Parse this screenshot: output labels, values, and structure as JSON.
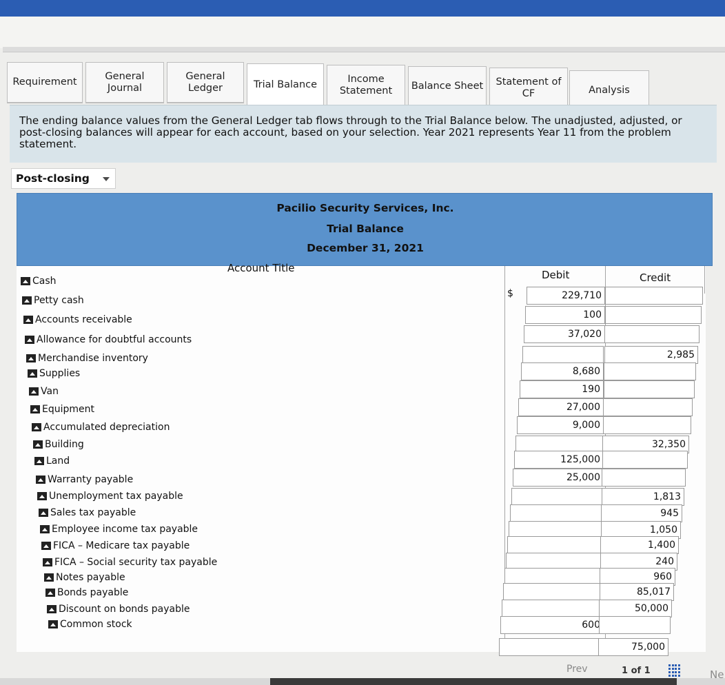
{
  "tabs": [
    {
      "label": "Requirement"
    },
    {
      "label": "General\nJournal"
    },
    {
      "label": "General\nLedger"
    },
    {
      "label": "Trial Balance"
    },
    {
      "label": "Income\nStatement"
    },
    {
      "label": "Balance Sheet"
    },
    {
      "label": "Statement of\nCF"
    },
    {
      "label": "Analysis"
    }
  ],
  "info_text": "The ending balance values from the General Ledger tab flows through to the Trial Balance below. The unadjusted, adjusted, or post-closing balances will appear for each account, based on your selection. Year 2021 represents Year 11 from the problem statement.",
  "balance_select": {
    "value": "Post-closing"
  },
  "header": {
    "company": "Pacilio Security Services, Inc.",
    "report": "Trial Balance",
    "date": "December 31, 2021"
  },
  "columns": {
    "account": "Account Title",
    "debit": "Debit",
    "credit": "Credit"
  },
  "currency_symbol": "$",
  "rows": [
    {
      "account": "Cash",
      "debit": "229,710",
      "credit": ""
    },
    {
      "account": "Petty cash",
      "debit": "100",
      "credit": ""
    },
    {
      "account": "Accounts receivable",
      "debit": "37,020",
      "credit": ""
    },
    {
      "account": "Allowance for doubtful accounts",
      "debit": "",
      "credit": "2,985"
    },
    {
      "account": "Merchandise inventory",
      "debit": "8,680",
      "credit": ""
    },
    {
      "account": "Supplies",
      "debit": "190",
      "credit": ""
    },
    {
      "account": "Van",
      "debit": "27,000",
      "credit": ""
    },
    {
      "account": "Equipment",
      "debit": "9,000",
      "credit": ""
    },
    {
      "account": "Accumulated depreciation",
      "debit": "",
      "credit": "32,350"
    },
    {
      "account": "Building",
      "debit": "125,000",
      "credit": ""
    },
    {
      "account": "Land",
      "debit": "25,000",
      "credit": ""
    },
    {
      "account": "Warranty payable",
      "debit": "",
      "credit": "1,813"
    },
    {
      "account": "Unemployment tax payable",
      "debit": "",
      "credit": "945"
    },
    {
      "account": "Sales tax payable",
      "debit": "",
      "credit": "1,050"
    },
    {
      "account": "Employee income tax payable",
      "debit": "",
      "credit": "1,400"
    },
    {
      "account": "FICA – Medicare tax payable",
      "debit": "",
      "credit": "240"
    },
    {
      "account": "FICA – Social security tax payable",
      "debit": "",
      "credit": "960"
    },
    {
      "account": "Notes payable",
      "debit": "",
      "credit": "85,017"
    },
    {
      "account": "Bonds payable",
      "debit": "",
      "credit": "50,000"
    },
    {
      "account": "Discount on bonds payable",
      "debit": "600",
      "credit": ""
    },
    {
      "account": "Common stock",
      "debit": "",
      "credit": "75,000"
    }
  ],
  "pagination": {
    "prev": "Prev",
    "page": "1 of 1",
    "next": "Ne"
  }
}
